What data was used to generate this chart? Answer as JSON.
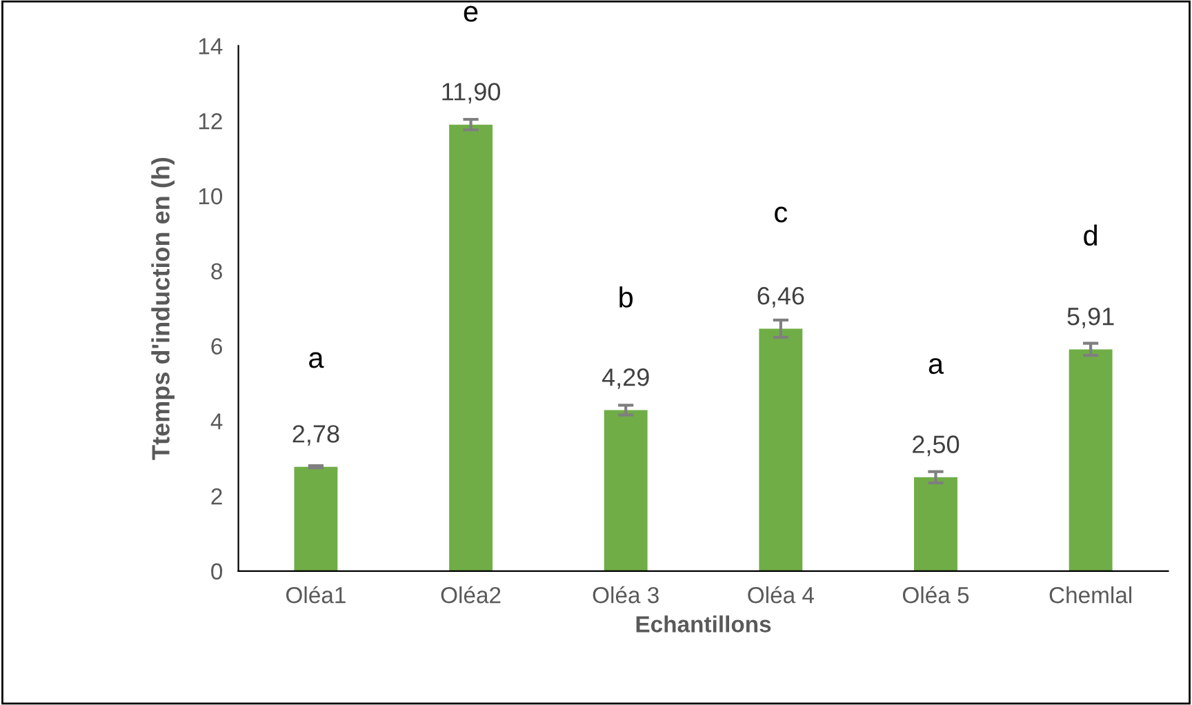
{
  "chart_data": {
    "type": "bar",
    "xlabel": "Echantillons",
    "ylabel": "Ttemps d'induction en (h)",
    "categories": [
      "Oléa1",
      "Oléa2",
      "Oléa 3",
      "Oléa 4",
      "Oléa 5",
      "Chemlal"
    ],
    "values": [
      2.78,
      11.9,
      4.29,
      6.46,
      2.5,
      5.91
    ],
    "errors": [
      0.03,
      0.14,
      0.13,
      0.23,
      0.15,
      0.16
    ],
    "value_labels": [
      "2,78",
      "11,90",
      "4,29",
      "6,46",
      "2,50",
      "5,91"
    ],
    "color": "#70ad47",
    "ylim": [
      0,
      14
    ],
    "yticks": [
      0,
      2,
      4,
      6,
      8,
      10,
      12,
      14
    ],
    "grid": false,
    "legend": false,
    "annotations": [
      "a",
      "e",
      "b",
      "c",
      "a",
      "d"
    ]
  }
}
